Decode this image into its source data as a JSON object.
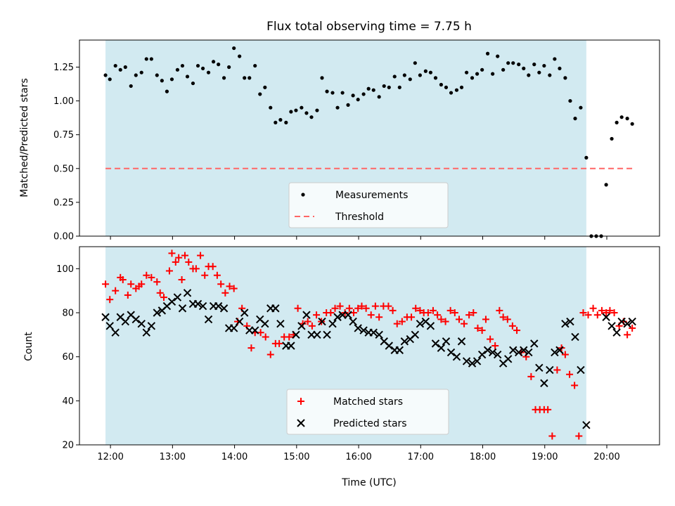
{
  "chart_data": [
    {
      "type": "scatter",
      "title": "Flux total observing time = 7.75 h",
      "xlabel": "",
      "ylabel": "Matched/Predicted stars",
      "x_unit": "hours UTC",
      "xlim": [
        11.5,
        20.85
      ],
      "ylim": [
        0,
        1.45
      ],
      "yticks": [
        "0.00",
        "0.25",
        "0.50",
        "0.75",
        "1.00",
        "1.25"
      ],
      "shaded_region": {
        "start": 11.92,
        "end": 19.67,
        "color": "#add8e6"
      },
      "legend": {
        "position": "bottom-center",
        "items": [
          "Measurements",
          "Threshold"
        ]
      },
      "series": [
        {
          "name": "Measurements",
          "marker": "dot",
          "color": "#000000",
          "x": [
            11.92,
            11.99,
            12.08,
            12.16,
            12.24,
            12.33,
            12.41,
            12.5,
            12.58,
            12.66,
            12.75,
            12.83,
            12.91,
            12.99,
            13.08,
            13.16,
            13.24,
            13.33,
            13.41,
            13.49,
            13.58,
            13.66,
            13.74,
            13.83,
            13.91,
            13.99,
            14.08,
            14.16,
            14.24,
            14.33,
            14.41,
            14.49,
            14.58,
            14.66,
            14.74,
            14.83,
            14.91,
            14.99,
            15.08,
            15.16,
            15.24,
            15.33,
            15.41,
            15.49,
            15.58,
            15.66,
            15.74,
            15.83,
            15.91,
            15.99,
            16.08,
            16.16,
            16.24,
            16.33,
            16.41,
            16.49,
            16.58,
            16.66,
            16.74,
            16.83,
            16.91,
            16.99,
            17.08,
            17.16,
            17.24,
            17.33,
            17.41,
            17.49,
            17.58,
            17.66,
            17.74,
            17.83,
            17.91,
            17.99,
            18.08,
            18.16,
            18.24,
            18.33,
            18.41,
            18.49,
            18.58,
            18.66,
            18.74,
            18.83,
            18.91,
            18.99,
            19.08,
            19.16,
            19.24,
            19.33,
            19.41,
            19.49,
            19.58,
            19.67,
            19.75,
            19.83,
            19.91,
            19.99,
            20.08,
            20.16,
            20.24,
            20.33,
            20.41
          ],
          "y": [
            1.19,
            1.16,
            1.26,
            1.23,
            1.25,
            1.11,
            1.19,
            1.21,
            1.31,
            1.31,
            1.19,
            1.15,
            1.07,
            1.16,
            1.23,
            1.26,
            1.18,
            1.13,
            1.26,
            1.24,
            1.21,
            1.29,
            1.27,
            1.17,
            1.25,
            1.39,
            1.33,
            1.17,
            1.17,
            1.26,
            1.05,
            1.1,
            0.95,
            0.84,
            0.86,
            0.84,
            0.92,
            0.93,
            0.95,
            0.91,
            0.88,
            0.93,
            1.17,
            1.07,
            1.06,
            0.95,
            1.06,
            0.97,
            1.04,
            1.01,
            1.05,
            1.09,
            1.08,
            1.03,
            1.11,
            1.1,
            1.18,
            1.1,
            1.19,
            1.16,
            1.28,
            1.19,
            1.22,
            1.21,
            1.17,
            1.12,
            1.1,
            1.06,
            1.08,
            1.1,
            1.21,
            1.17,
            1.2,
            1.23,
            1.35,
            1.2,
            1.33,
            1.23,
            1.28,
            1.28,
            1.27,
            1.24,
            1.19,
            1.27,
            1.21,
            1.26,
            1.19,
            1.31,
            1.24,
            1.17,
            1.0,
            0.87,
            0.95,
            0.58,
            0.0,
            0.0,
            0.0,
            0.38,
            0.72,
            0.84,
            0.88,
            0.87,
            0.83
          ]
        },
        {
          "name": "Threshold",
          "type": "line",
          "style": "dashed",
          "color": "#ff6666",
          "x": [
            11.92,
            20.42
          ],
          "y": [
            0.5,
            0.5
          ]
        }
      ]
    },
    {
      "type": "scatter",
      "title": "",
      "xlabel": "Time (UTC)",
      "ylabel": "Count",
      "x_unit": "hours UTC",
      "xlim": [
        11.5,
        20.85
      ],
      "ylim": [
        20,
        110
      ],
      "xticks": [
        "12:00",
        "13:00",
        "14:00",
        "15:00",
        "16:00",
        "17:00",
        "18:00",
        "19:00",
        "20:00"
      ],
      "yticks": [
        "20",
        "40",
        "60",
        "80",
        "100"
      ],
      "shaded_region": {
        "start": 11.92,
        "end": 19.67,
        "color": "#add8e6"
      },
      "legend": {
        "position": "bottom-center",
        "items": [
          "Matched stars",
          "Predicted stars"
        ]
      },
      "series": [
        {
          "name": "Matched stars",
          "marker": "plus",
          "color": "#ff0000",
          "x": [
            11.92,
            11.99,
            12.08,
            12.16,
            12.2,
            12.28,
            12.33,
            12.41,
            12.46,
            12.5,
            12.58,
            12.66,
            12.75,
            12.8,
            12.86,
            12.95,
            12.99,
            13.05,
            13.1,
            13.15,
            13.2,
            13.26,
            13.33,
            13.38,
            13.45,
            13.52,
            13.58,
            13.65,
            13.72,
            13.78,
            13.85,
            13.92,
            13.99,
            14.05,
            14.12,
            14.2,
            14.27,
            14.33,
            14.42,
            14.5,
            14.58,
            14.66,
            14.72,
            14.8,
            14.88,
            14.95,
            15.02,
            15.1,
            15.18,
            15.25,
            15.32,
            15.4,
            15.48,
            15.55,
            15.62,
            15.7,
            15.78,
            15.85,
            15.92,
            15.99,
            16.05,
            16.12,
            16.2,
            16.27,
            16.33,
            16.4,
            16.48,
            16.55,
            16.62,
            16.7,
            16.78,
            16.85,
            16.92,
            16.99,
            17.05,
            17.12,
            17.2,
            17.27,
            17.33,
            17.4,
            17.48,
            17.55,
            17.62,
            17.7,
            17.78,
            17.85,
            17.92,
            17.99,
            18.05,
            18.12,
            18.2,
            18.27,
            18.33,
            18.4,
            18.48,
            18.55,
            18.62,
            18.7,
            18.78,
            18.85,
            18.92,
            18.99,
            19.05,
            19.12,
            19.2,
            19.27,
            19.33,
            19.4,
            19.48,
            19.55,
            19.62,
            19.7,
            19.78,
            19.85,
            19.92,
            19.99,
            20.05,
            20.12,
            20.2,
            20.27,
            20.33,
            20.41
          ],
          "y": [
            93,
            86,
            90,
            96,
            95,
            88,
            93,
            91,
            92,
            93,
            97,
            96,
            94,
            89,
            87,
            99,
            107,
            103,
            105,
            95,
            106,
            103,
            100,
            100,
            106,
            97,
            101,
            101,
            97,
            93,
            89,
            92,
            91,
            76,
            82,
            74,
            64,
            71,
            71,
            69,
            61,
            66,
            66,
            69,
            69,
            70,
            82,
            75,
            76,
            74,
            79,
            76,
            80,
            80,
            82,
            83,
            80,
            82,
            80,
            82,
            83,
            82,
            79,
            83,
            78,
            83,
            83,
            81,
            75,
            76,
            78,
            78,
            82,
            81,
            80,
            80,
            81,
            79,
            77,
            76,
            81,
            80,
            77,
            75,
            79,
            80,
            73,
            72,
            77,
            68,
            65,
            81,
            78,
            77,
            74,
            72,
            62,
            60,
            51,
            36,
            36,
            36,
            36,
            24,
            54,
            64,
            61,
            52,
            47,
            24,
            80,
            79,
            82,
            79,
            81,
            80,
            81,
            80,
            74,
            76,
            70,
            73
          ],
          "_note": ""
        },
        {
          "name": "Predicted stars",
          "marker": "x",
          "color": "#000000",
          "x": [
            11.92,
            11.99,
            12.08,
            12.16,
            12.24,
            12.33,
            12.41,
            12.5,
            12.58,
            12.66,
            12.75,
            12.83,
            12.91,
            12.99,
            13.08,
            13.16,
            13.24,
            13.33,
            13.41,
            13.49,
            13.58,
            13.66,
            13.74,
            13.83,
            13.91,
            13.99,
            14.08,
            14.16,
            14.24,
            14.33,
            14.41,
            14.49,
            14.58,
            14.66,
            14.74,
            14.83,
            14.91,
            14.99,
            15.08,
            15.16,
            15.24,
            15.33,
            15.41,
            15.49,
            15.58,
            15.66,
            15.74,
            15.83,
            15.91,
            15.99,
            16.08,
            16.16,
            16.24,
            16.33,
            16.41,
            16.49,
            16.58,
            16.66,
            16.74,
            16.83,
            16.91,
            16.99,
            17.08,
            17.16,
            17.24,
            17.33,
            17.41,
            17.49,
            17.58,
            17.66,
            17.74,
            17.83,
            17.91,
            17.99,
            18.08,
            18.16,
            18.24,
            18.33,
            18.41,
            18.49,
            18.58,
            18.66,
            18.74,
            18.83,
            18.91,
            18.99,
            19.08,
            19.16,
            19.24,
            19.33,
            19.41,
            19.49,
            19.58,
            19.67,
            19.99,
            20.08,
            20.16,
            20.24,
            20.33,
            20.41
          ],
          "y": [
            78,
            74,
            71,
            78,
            76,
            79,
            77,
            75,
            71,
            74,
            80,
            81,
            83,
            85,
            87,
            82,
            89,
            84,
            84,
            83,
            77,
            83,
            83,
            82,
            73,
            73,
            76,
            80,
            72,
            72,
            77,
            75,
            82,
            82,
            75,
            65,
            65,
            70,
            74,
            79,
            70,
            70,
            76,
            70,
            75,
            78,
            79,
            79,
            76,
            73,
            72,
            71,
            71,
            70,
            67,
            65,
            63,
            63,
            67,
            68,
            70,
            75,
            76,
            74,
            66,
            64,
            67,
            62,
            60,
            67,
            58,
            57,
            58,
            61,
            63,
            62,
            61,
            57,
            59,
            63,
            62,
            63,
            62,
            66,
            55,
            48,
            54,
            62,
            63,
            75,
            76,
            69,
            54,
            29,
            78,
            74,
            71,
            76,
            75,
            76
          ]
        }
      ]
    }
  ]
}
